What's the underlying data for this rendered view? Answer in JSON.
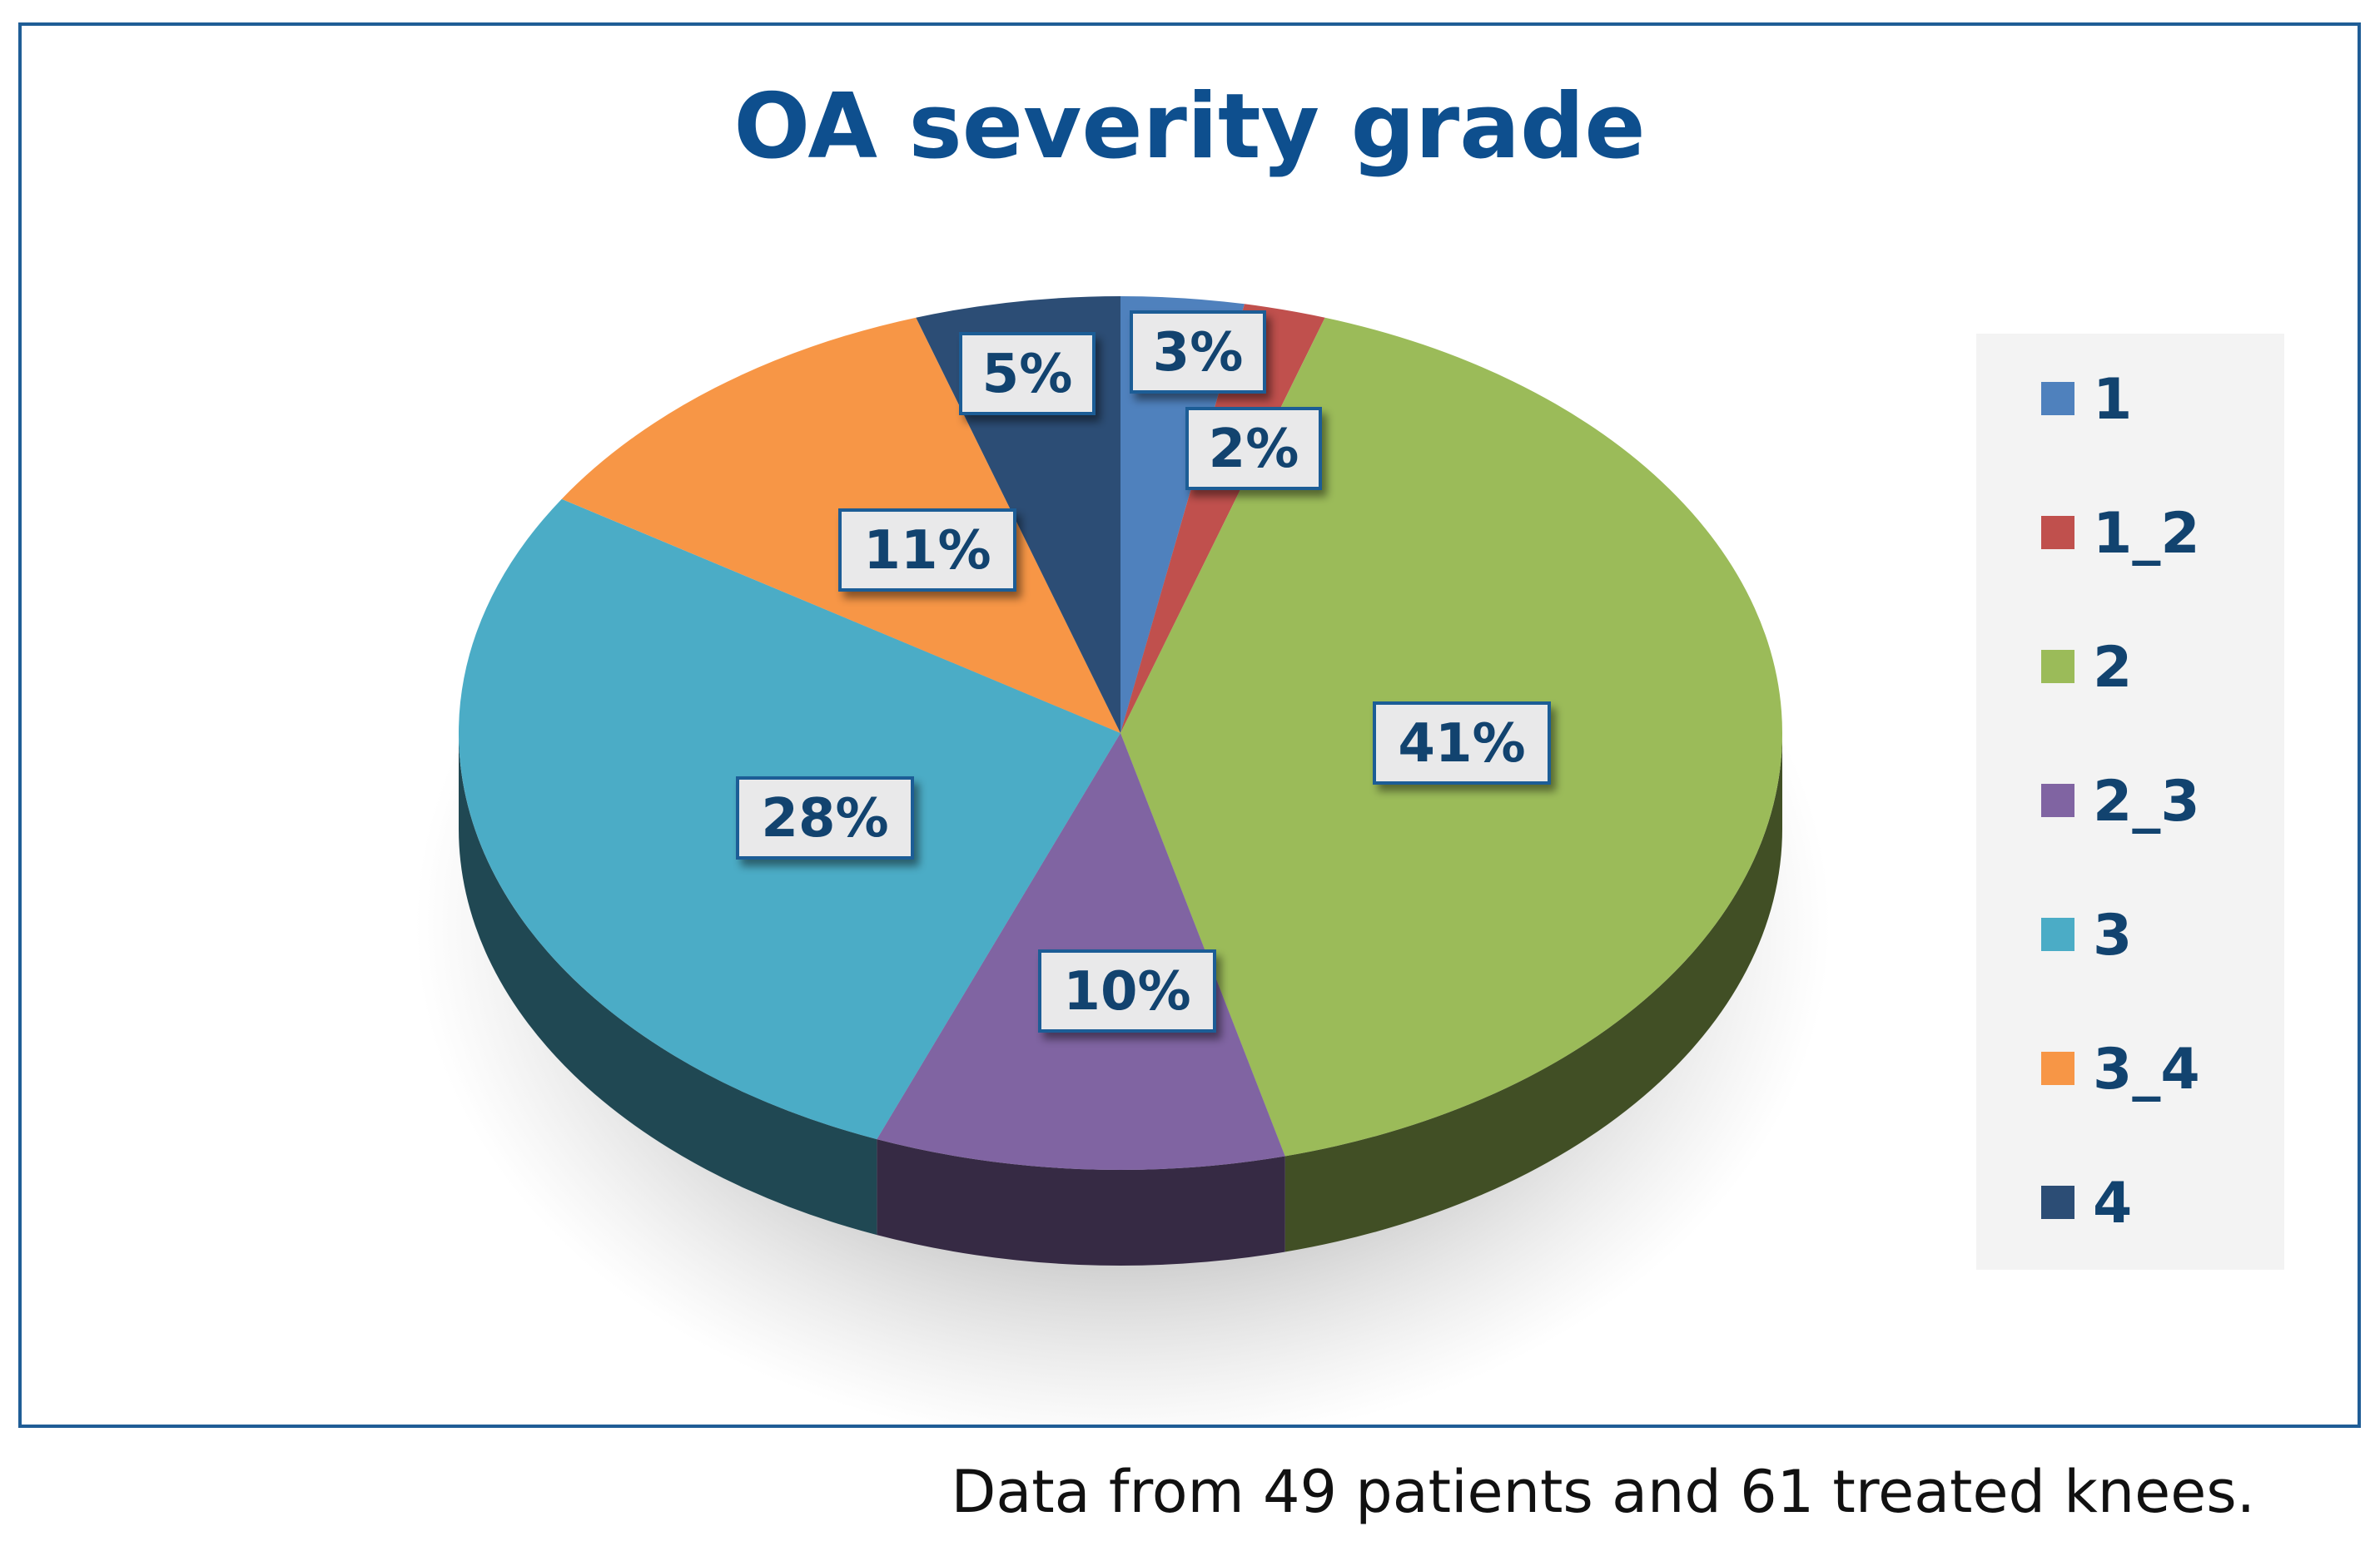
{
  "chart_data": {
    "type": "pie",
    "title": "OA severity grade",
    "categories": [
      "1",
      "1_2",
      "2",
      "2_3",
      "3",
      "3_4",
      "4"
    ],
    "values": [
      3,
      2,
      41,
      10,
      28,
      11,
      5
    ],
    "labels": [
      "3%",
      "2%",
      "41%",
      "10%",
      "28%",
      "11%",
      "5%"
    ],
    "colors": [
      "#4f81bd",
      "#c0504d",
      "#9bbb59",
      "#8064a2",
      "#4bacc6",
      "#f79646",
      "#2c4d75"
    ],
    "legend_position": "right",
    "style": "3d"
  },
  "colors": {
    "title": "#0e4f8e",
    "frame": "#1f5d96",
    "label_text": "#12436f",
    "label_box": "#e9e9ea",
    "legend_bg": "#f3f3f3"
  },
  "caption": "Data from 49 patients and 61 treated knees."
}
